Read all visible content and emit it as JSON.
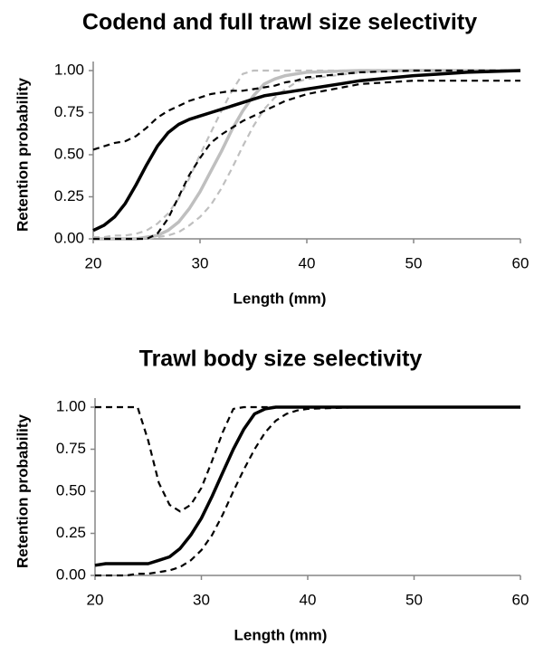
{
  "chart_data": [
    {
      "type": "line",
      "title": "Codend and full trawl size selectivity",
      "x_label": "Length (mm)",
      "y_label": "Retention probability",
      "x": [
        20,
        21,
        22,
        23,
        24,
        25,
        26,
        27,
        28,
        29,
        30,
        31,
        32,
        33,
        34,
        35,
        36,
        37,
        38,
        39,
        40,
        45,
        50,
        55,
        60
      ],
      "xlim": [
        20,
        60
      ],
      "ylim": [
        0,
        1
      ],
      "xticks": [
        20,
        30,
        40,
        50,
        60
      ],
      "yticks": [
        {
          "value": 0,
          "label": "0.00"
        },
        {
          "value": 0.25,
          "label": "0.25"
        },
        {
          "value": 0.5,
          "label": "0.50"
        },
        {
          "value": 0.75,
          "label": "0.75"
        },
        {
          "value": 1,
          "label": "1.00"
        }
      ],
      "series": [
        {
          "color": "#bfbfbf",
          "dashed": false,
          "values": [
            0,
            0,
            0,
            0,
            0,
            0.01,
            0.02,
            0.05,
            0.1,
            0.18,
            0.28,
            0.4,
            0.52,
            0.65,
            0.76,
            0.85,
            0.92,
            0.95,
            0.97,
            0.98,
            0.99,
            1,
            1,
            1,
            1
          ]
        },
        {
          "color": "#bfbfbf",
          "dashed": true,
          "values": [
            0.01,
            0.01,
            0.02,
            0.02,
            0.03,
            0.05,
            0.09,
            0.15,
            0.24,
            0.36,
            0.5,
            0.63,
            0.76,
            0.88,
            0.98,
            1,
            1,
            1,
            1,
            1,
            1,
            1,
            1,
            1,
            1
          ]
        },
        {
          "color": "#bfbfbf",
          "dashed": true,
          "values": [
            0,
            0,
            0,
            0,
            0,
            0,
            0.01,
            0.02,
            0.04,
            0.08,
            0.13,
            0.2,
            0.3,
            0.42,
            0.55,
            0.67,
            0.77,
            0.84,
            0.89,
            0.93,
            0.95,
            0.99,
            1,
            1,
            1
          ]
        },
        {
          "color": "#000000",
          "dashed": false,
          "values": [
            0.05,
            0.08,
            0.13,
            0.21,
            0.32,
            0.44,
            0.55,
            0.63,
            0.68,
            0.71,
            0.73,
            0.75,
            0.77,
            0.79,
            0.81,
            0.83,
            0.85,
            0.86,
            0.87,
            0.88,
            0.89,
            0.94,
            0.97,
            0.99,
            1
          ]
        },
        {
          "color": "#000000",
          "dashed": true,
          "values": [
            0.53,
            0.55,
            0.57,
            0.58,
            0.61,
            0.66,
            0.72,
            0.76,
            0.79,
            0.82,
            0.84,
            0.86,
            0.87,
            0.88,
            0.88,
            0.89,
            0.9,
            0.91,
            0.93,
            0.94,
            0.96,
            0.99,
            1,
            1,
            1
          ]
        },
        {
          "color": "#000000",
          "dashed": true,
          "values": [
            0,
            0,
            0,
            0,
            0,
            0,
            0.03,
            0.12,
            0.25,
            0.38,
            0.48,
            0.57,
            0.62,
            0.66,
            0.7,
            0.73,
            0.76,
            0.79,
            0.82,
            0.84,
            0.86,
            0.92,
            0.94,
            0.94,
            0.94
          ]
        }
      ]
    },
    {
      "type": "line",
      "title": "Trawl body size selectivity",
      "x_label": "Length (mm)",
      "y_label": "Retention probability",
      "x": [
        20,
        21,
        22,
        23,
        24,
        25,
        26,
        27,
        28,
        29,
        30,
        31,
        32,
        33,
        34,
        35,
        36,
        37,
        38,
        39,
        40,
        45,
        50,
        55,
        60
      ],
      "xlim": [
        20,
        60
      ],
      "ylim": [
        0,
        1
      ],
      "xticks": [
        20,
        30,
        40,
        50,
        60
      ],
      "yticks": [
        {
          "value": 0,
          "label": "0.00"
        },
        {
          "value": 0.25,
          "label": "0.25"
        },
        {
          "value": 0.5,
          "label": "0.50"
        },
        {
          "value": 0.75,
          "label": "0.75"
        },
        {
          "value": 1,
          "label": "1.00"
        }
      ],
      "series": [
        {
          "color": "#000000",
          "dashed": false,
          "values": [
            0.06,
            0.07,
            0.07,
            0.07,
            0.07,
            0.07,
            0.09,
            0.11,
            0.16,
            0.24,
            0.34,
            0.47,
            0.61,
            0.75,
            0.87,
            0.96,
            0.99,
            1,
            1,
            1,
            1,
            1,
            1,
            1,
            1
          ]
        },
        {
          "color": "#000000",
          "dashed": true,
          "values": [
            1,
            1,
            1,
            1,
            1,
            0.8,
            0.55,
            0.42,
            0.38,
            0.42,
            0.52,
            0.68,
            0.85,
            0.99,
            1,
            1,
            1,
            1,
            1,
            1,
            1,
            1,
            1,
            1,
            1
          ]
        },
        {
          "color": "#000000",
          "dashed": true,
          "values": [
            0,
            0,
            0,
            0,
            0.01,
            0.01,
            0.02,
            0.03,
            0.05,
            0.09,
            0.15,
            0.24,
            0.36,
            0.5,
            0.63,
            0.75,
            0.85,
            0.92,
            0.96,
            0.98,
            0.99,
            1,
            1,
            1,
            1
          ]
        }
      ]
    }
  ]
}
